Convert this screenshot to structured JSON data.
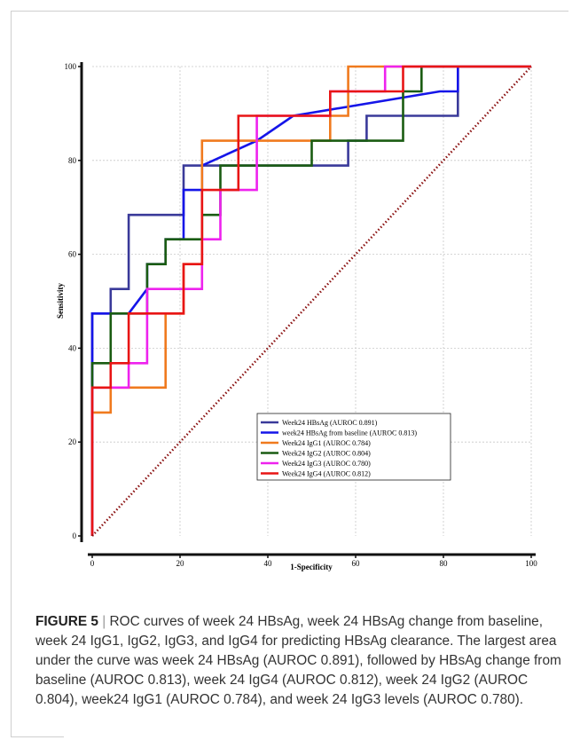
{
  "chart_data": {
    "type": "line",
    "xlabel": "1-Specificity",
    "ylabel": "Sensitivity",
    "xlim": [
      0,
      100
    ],
    "ylim": [
      0,
      100
    ],
    "x_ticks": [
      "0",
      "20",
      "40",
      "60",
      "80",
      "100"
    ],
    "y_ticks": [
      "0",
      "20",
      "40",
      "60",
      "80",
      "100"
    ],
    "grid": true,
    "legend_position": "bottom-right",
    "series": [
      {
        "name": "Week24 HBsAg (AUROC 0.891)",
        "color": "#3a3a9a",
        "x": [
          0,
          0,
          4.2,
          4.2,
          8.3,
          8.3,
          20.8,
          20.8,
          58.3,
          58.3,
          62.5,
          62.5,
          83.3,
          83.3
        ],
        "y": [
          0,
          47.4,
          47.4,
          52.6,
          52.6,
          68.4,
          68.4,
          78.9,
          78.9,
          84.2,
          84.2,
          89.5,
          89.5,
          100
        ]
      },
      {
        "name": "week24 HBsAg from baseline (AUROC 0.813)",
        "color": "#1515e8",
        "x": [
          0,
          0,
          8.3,
          12.5,
          12.5,
          16.7,
          16.7,
          20.8,
          20.8,
          25.0,
          25.0,
          37.5,
          45.8,
          79.2,
          83.3,
          83.3
        ],
        "y": [
          0,
          47.4,
          47.4,
          52.6,
          57.9,
          57.9,
          63.2,
          63.2,
          73.7,
          73.7,
          78.9,
          84.2,
          89.5,
          94.7,
          94.7,
          100
        ]
      },
      {
        "name": "Week24 IgG1 (AUROC 0.784)",
        "color": "#f07a1e",
        "x": [
          0,
          0,
          4.2,
          4.2,
          16.7,
          16.7,
          20.8,
          20.8,
          25.0,
          25.0,
          54.2,
          54.2,
          58.3,
          58.3,
          100
        ],
        "y": [
          0,
          26.3,
          26.3,
          31.6,
          31.6,
          47.4,
          47.4,
          57.9,
          57.9,
          84.2,
          84.2,
          89.5,
          89.5,
          100,
          100
        ]
      },
      {
        "name": "Week24 IgG2 (AUROC 0.804)",
        "color": "#1a5c12",
        "x": [
          0,
          0,
          4.2,
          4.2,
          12.5,
          12.5,
          16.7,
          16.7,
          25.0,
          25.0,
          29.2,
          29.2,
          50.0,
          50.0,
          70.8,
          70.8,
          75.0,
          75.0,
          100
        ],
        "y": [
          0,
          36.8,
          36.8,
          47.4,
          47.4,
          57.9,
          57.9,
          63.2,
          63.2,
          68.4,
          68.4,
          78.9,
          78.9,
          84.2,
          84.2,
          94.7,
          94.7,
          100,
          100
        ]
      },
      {
        "name": "Week24 IgG3 (AUROC 0.780)",
        "color": "#ee22ee",
        "x": [
          0,
          0,
          8.3,
          8.3,
          12.5,
          12.5,
          25.0,
          25.0,
          29.2,
          29.2,
          37.5,
          37.5,
          54.2,
          54.2,
          66.7,
          66.7,
          100
        ],
        "y": [
          0,
          31.6,
          31.6,
          36.8,
          36.8,
          52.6,
          52.6,
          63.2,
          63.2,
          73.7,
          73.7,
          89.5,
          89.5,
          94.7,
          94.7,
          100,
          100
        ]
      },
      {
        "name": "Week24 IgG4 (AUROC 0.812)",
        "color": "#e81515",
        "x": [
          0,
          0,
          4.2,
          4.2,
          8.3,
          8.3,
          20.8,
          20.8,
          25.0,
          25.0,
          33.3,
          33.3,
          54.2,
          54.2,
          70.8,
          70.8,
          100
        ],
        "y": [
          0,
          31.6,
          31.6,
          36.8,
          36.8,
          47.4,
          47.4,
          57.9,
          57.9,
          73.7,
          73.7,
          89.5,
          89.5,
          94.7,
          94.7,
          100,
          100
        ]
      },
      {
        "name": "",
        "color": "#8a1010",
        "style": "dotted",
        "x": [
          0,
          100
        ],
        "y": [
          0,
          100
        ]
      }
    ]
  },
  "caption": {
    "label": "FIGURE 5",
    "separator": "|",
    "text": "ROC curves of week 24 HBsAg, week 24 HBsAg change from baseline, week 24 IgG1, IgG2, IgG3, and IgG4 for predicting HBsAg clearance. The largest area under the curve was week 24 HBsAg (AUROC 0.891), followed by HBsAg change from baseline (AUROC 0.813), week 24 IgG4 (AUROC 0.812), week 24 IgG2 (AUROC 0.804), week24 IgG1 (AUROC 0.784), and week 24 IgG3 levels (AUROC 0.780)."
  }
}
